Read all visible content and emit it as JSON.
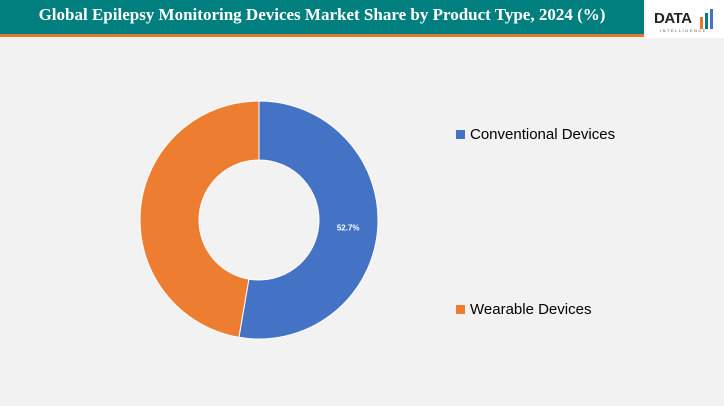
{
  "header": {
    "title": "Global Epilepsy Monitoring Devices Market Share by Product Type, 2024 (%)",
    "logo": "DATA",
    "logo_sub": "INTELLIGENCE"
  },
  "chart_data": {
    "type": "pie",
    "donut": true,
    "title": "Global Epilepsy Monitoring Devices Market Share by Product Type, 2024 (%)",
    "categories": [
      "Conventional Devices",
      "Wearable Devices"
    ],
    "values": [
      52.7,
      47.3
    ],
    "data_labels": [
      "52.7%",
      ""
    ],
    "colors": [
      "#4472c4",
      "#ed7d31"
    ],
    "legend": "right"
  }
}
